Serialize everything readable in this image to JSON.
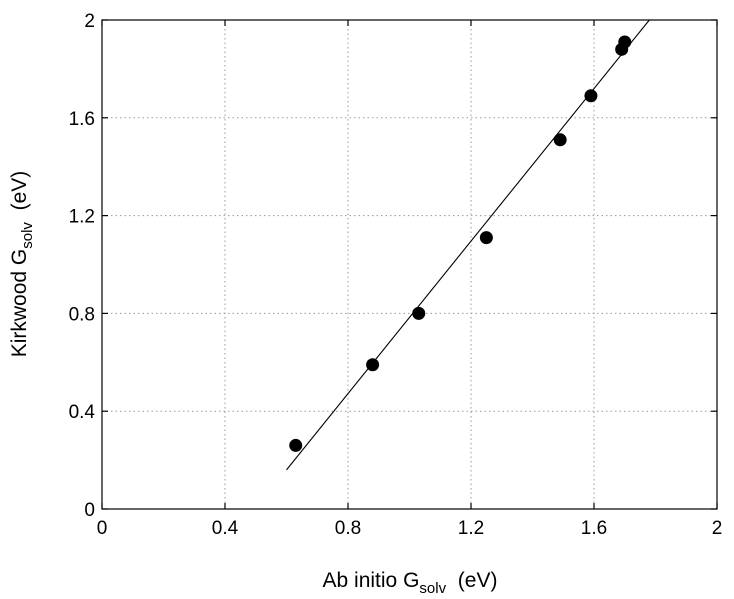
{
  "chart_data": {
    "type": "scatter",
    "title": "",
    "xlabel": {
      "main": "Ab initio  G",
      "sub": "solv",
      "unit": "  (eV)"
    },
    "ylabel": {
      "main": "Kirkwood  G",
      "sub": "solv",
      "unit": "  (eV)"
    },
    "xlim": [
      0,
      2
    ],
    "ylim": [
      0,
      2
    ],
    "xticks": [
      0,
      0.4,
      0.8,
      1.2,
      1.6,
      2
    ],
    "yticks": [
      0,
      0.4,
      0.8,
      1.2,
      1.6,
      2
    ],
    "xtick_labels": [
      "0",
      "0.4",
      "0.8",
      "1.2",
      "1.6",
      "2"
    ],
    "ytick_labels": [
      "0",
      "0.4",
      "0.8",
      "1.2",
      "1.6",
      "2"
    ],
    "grid": true,
    "legend": "none",
    "series": [
      {
        "type": "scatter",
        "x": [
          0.63,
          0.88,
          1.03,
          1.25,
          1.49,
          1.59,
          1.69,
          1.7
        ],
        "y": [
          0.26,
          0.59,
          0.8,
          1.11,
          1.51,
          1.69,
          1.88,
          1.91
        ],
        "color": "#000000"
      },
      {
        "type": "line",
        "x": [
          0.6,
          1.78
        ],
        "y": [
          0.16,
          2.0
        ],
        "color": "#000000"
      }
    ]
  }
}
